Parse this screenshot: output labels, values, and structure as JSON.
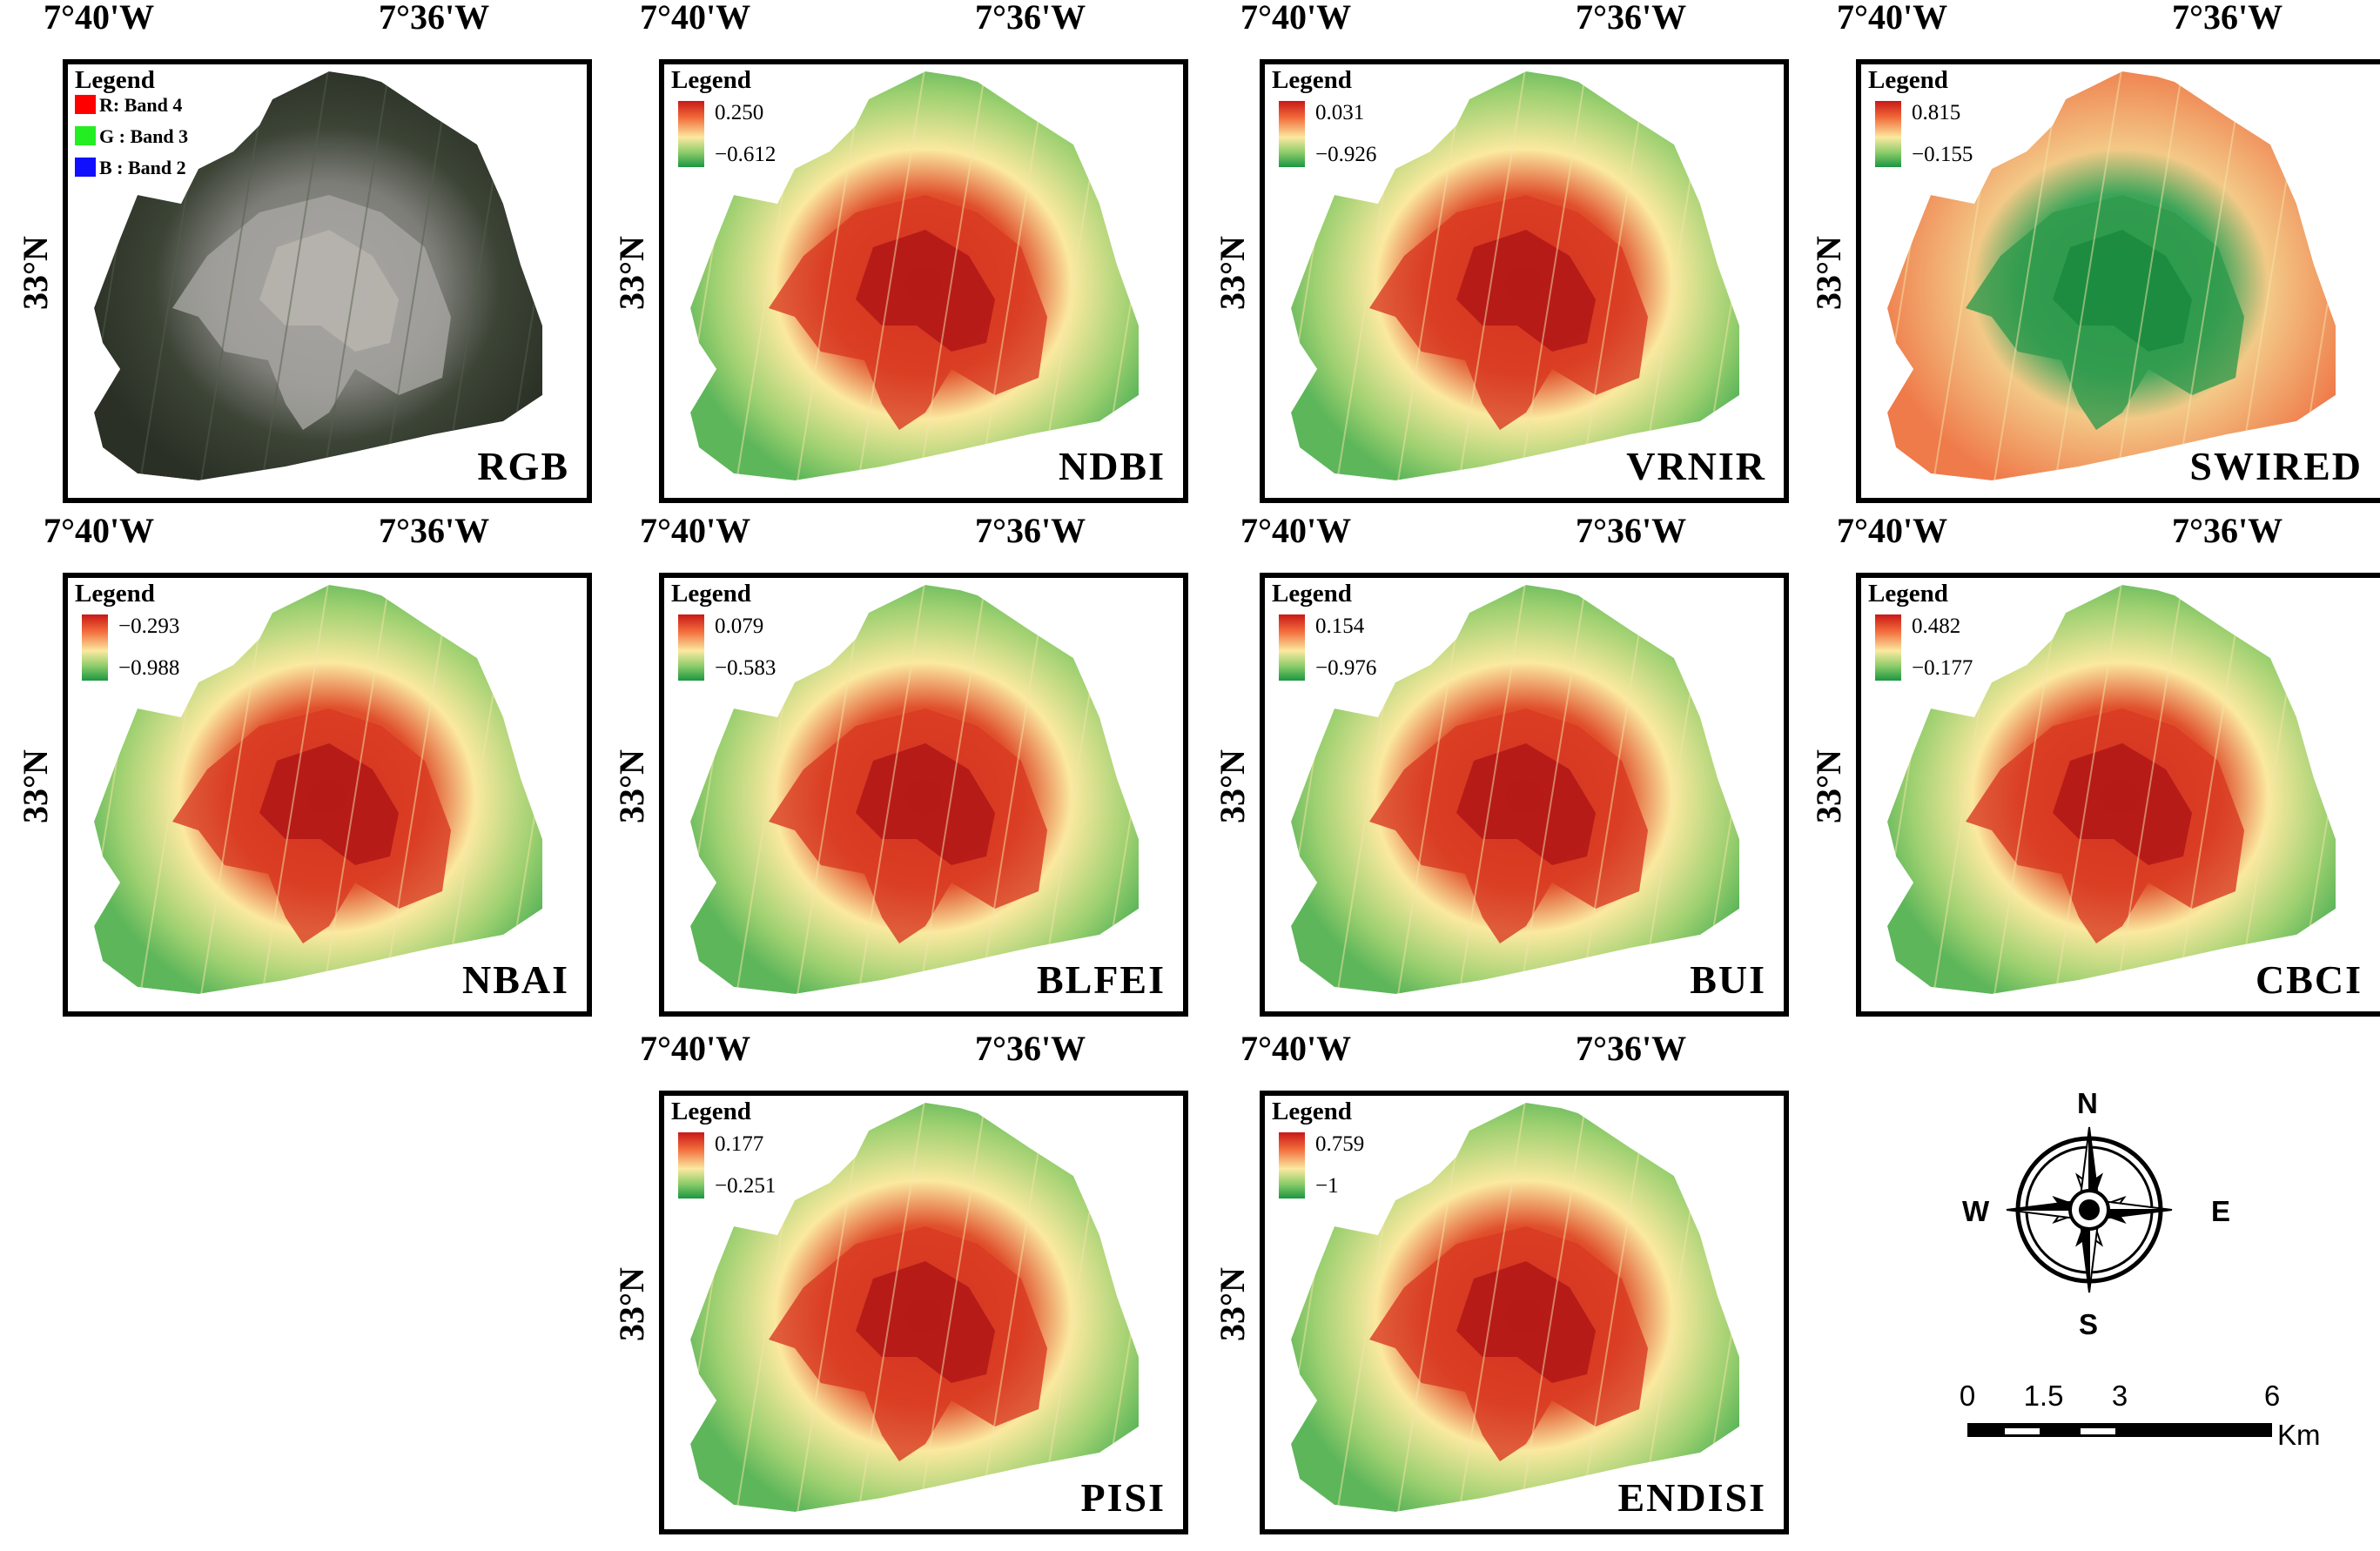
{
  "axes": {
    "lon_left": "7°40'W",
    "lon_right": "7°36'W",
    "lat": "33°N"
  },
  "legend_title": "Legend",
  "rgb_legend": [
    {
      "label": "R: Band 4",
      "color": "#ff0000"
    },
    {
      "label": "G : Band 3",
      "color": "#22ee22"
    },
    {
      "label": "B : Band 2",
      "color": "#1010ff"
    }
  ],
  "palette": {
    "high": "#c81818",
    "mid": "#fbe9a0",
    "low": "#1a9641"
  },
  "panels": [
    {
      "name": "RGB",
      "kind": "rgb"
    },
    {
      "name": "NDBI",
      "kind": "index",
      "max": "0.250",
      "min": "−0.612"
    },
    {
      "name": "VRNIR",
      "kind": "index",
      "max": "0.031",
      "min": "−0.926"
    },
    {
      "name": "SWIRED",
      "kind": "index",
      "max": "0.815",
      "min": "−0.155",
      "inverted": true
    },
    {
      "name": "NBAI",
      "kind": "index",
      "max": "−0.293",
      "min": "−0.988"
    },
    {
      "name": "BLFEI",
      "kind": "index",
      "max": "0.079",
      "min": "−0.583"
    },
    {
      "name": "BUI",
      "kind": "index",
      "max": "0.154",
      "min": "−0.976"
    },
    {
      "name": "CBCI",
      "kind": "index",
      "max": "0.482",
      "min": "−0.177"
    },
    {
      "name": "PISI",
      "kind": "index",
      "max": "0.177",
      "min": "−0.251"
    },
    {
      "name": "ENDISI",
      "kind": "index",
      "max": "0.759",
      "min": "−1"
    }
  ],
  "compass": {
    "n": "N",
    "s": "S",
    "e": "E",
    "w": "W"
  },
  "scale": {
    "ticks": [
      "0",
      "1.5",
      "3",
      "6"
    ],
    "tick_km": [
      0,
      1.5,
      3,
      6
    ],
    "unit": "Km"
  }
}
